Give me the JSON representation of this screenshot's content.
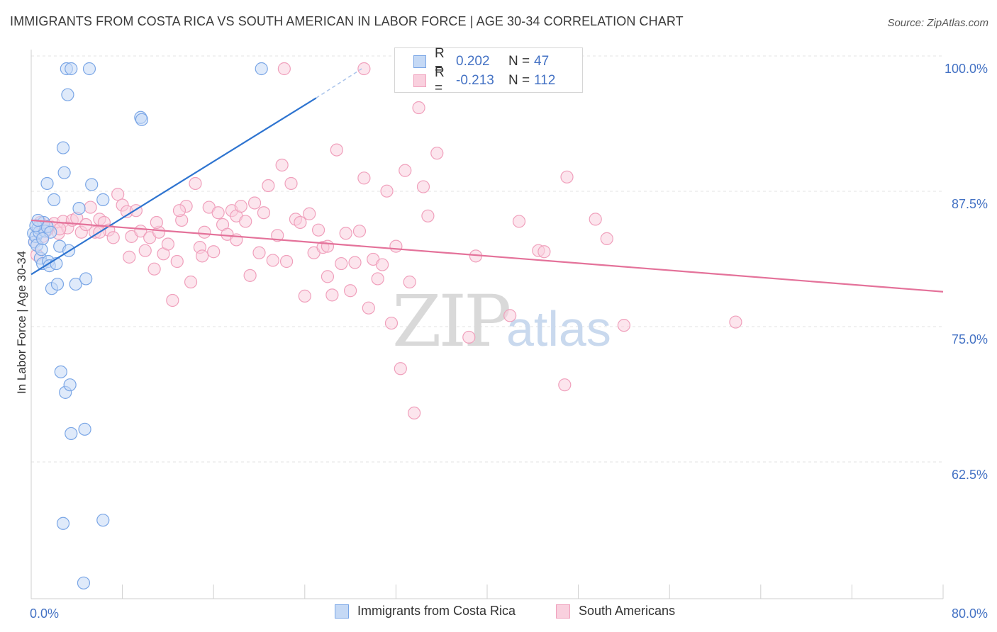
{
  "title": "IMMIGRANTS FROM COSTA RICA VS SOUTH AMERICAN IN LABOR FORCE | AGE 30-34 CORRELATION CHART",
  "source": "Source: ZipAtlas.com",
  "watermark": "ZIPatlas",
  "legend": {
    "rows": [
      {
        "r_label": "R =",
        "r_value": "0.202",
        "n_label": "N =",
        "n_value": "47"
      },
      {
        "r_label": "R =",
        "r_value": "-0.213",
        "n_label": "N =",
        "n_value": "112"
      }
    ]
  },
  "bottom_legend": {
    "series1": "Immigrants from Costa Rica",
    "series2": "South Americans"
  },
  "chart_data": {
    "type": "scatter",
    "title": "IMMIGRANTS FROM COSTA RICA VS SOUTH AMERICAN IN LABOR FORCE | AGE 30-34 CORRELATION CHART",
    "xlabel": "",
    "ylabel": "In Labor Force | Age 30-34",
    "xlim": [
      0,
      80
    ],
    "ylim": [
      51.5,
      102
    ],
    "x_tick_labels": [
      "0.0%",
      "80.0%"
    ],
    "y_ticks": [
      62.5,
      75.0,
      87.5,
      100.0
    ],
    "y_tick_labels": [
      "62.5%",
      "75.0%",
      "87.5%",
      "100.0%"
    ],
    "grid": true,
    "colors": {
      "series1": "#7aa6e6",
      "series2": "#f0a0bc",
      "line1": "#2e74d0",
      "line2": "#e4729a",
      "axis_text": "#4472c4"
    },
    "series": [
      {
        "name": "Immigrants from Costa Rica",
        "trend": {
          "x": [
            0,
            25
          ],
          "y": [
            81.0,
            97.3
          ],
          "dashed_to": {
            "x": 29,
            "y": 100.0
          }
        },
        "points": [
          [
            0.2,
            84.8
          ],
          [
            0.3,
            84.0
          ],
          [
            0.4,
            84.5
          ],
          [
            0.5,
            83.7
          ],
          [
            0.6,
            85.3
          ],
          [
            0.8,
            82.5
          ],
          [
            0.9,
            83.3
          ],
          [
            0.7,
            84.9
          ],
          [
            1.0,
            82.0
          ],
          [
            1.1,
            85.8
          ],
          [
            1.2,
            85.0
          ],
          [
            1.4,
            85.4
          ],
          [
            1.5,
            82.2
          ],
          [
            1.6,
            81.8
          ],
          [
            1.7,
            84.9
          ],
          [
            1.8,
            79.7
          ],
          [
            2.0,
            87.9
          ],
          [
            2.2,
            82.0
          ],
          [
            2.3,
            80.1
          ],
          [
            2.5,
            83.6
          ],
          [
            2.6,
            72.0
          ],
          [
            2.8,
            92.7
          ],
          [
            2.9,
            90.4
          ],
          [
            3.0,
            70.1
          ],
          [
            3.3,
            83.2
          ],
          [
            3.4,
            70.8
          ],
          [
            3.5,
            66.3
          ],
          [
            3.9,
            80.1
          ],
          [
            4.2,
            87.1
          ],
          [
            4.7,
            66.7
          ],
          [
            4.8,
            80.6
          ],
          [
            5.3,
            89.3
          ],
          [
            6.3,
            87.9
          ],
          [
            6.3,
            58.3
          ],
          [
            2.8,
            58.0
          ],
          [
            4.6,
            52.5
          ],
          [
            1.4,
            89.4
          ],
          [
            3.2,
            97.6
          ],
          [
            3.1,
            100.0
          ],
          [
            3.5,
            100.0
          ],
          [
            5.1,
            100.0
          ],
          [
            9.6,
            95.5
          ],
          [
            9.7,
            95.3
          ],
          [
            20.2,
            100.0
          ],
          [
            0.4,
            85.5
          ],
          [
            1.0,
            84.3
          ],
          [
            0.6,
            86.0
          ]
        ]
      },
      {
        "name": "South Americans",
        "trend": {
          "x": [
            0,
            80
          ],
          "y": [
            86.0,
            79.4
          ]
        },
        "points": [
          [
            0.3,
            84.0
          ],
          [
            0.5,
            82.8
          ],
          [
            0.8,
            85.8
          ],
          [
            1.0,
            84.5
          ],
          [
            1.3,
            85.0
          ],
          [
            1.6,
            85.5
          ],
          [
            2.0,
            85.7
          ],
          [
            2.4,
            84.8
          ],
          [
            2.8,
            85.9
          ],
          [
            3.2,
            85.3
          ],
          [
            3.6,
            86.0
          ],
          [
            4.0,
            86.2
          ],
          [
            4.4,
            84.9
          ],
          [
            4.8,
            85.6
          ],
          [
            5.2,
            87.2
          ],
          [
            5.6,
            84.9
          ],
          [
            6.0,
            86.1
          ],
          [
            6.4,
            85.8
          ],
          [
            6.8,
            85.1
          ],
          [
            7.2,
            84.4
          ],
          [
            7.6,
            88.4
          ],
          [
            8.0,
            87.4
          ],
          [
            8.4,
            86.8
          ],
          [
            8.8,
            84.5
          ],
          [
            9.2,
            86.9
          ],
          [
            9.6,
            85.0
          ],
          [
            10.0,
            83.2
          ],
          [
            10.4,
            84.4
          ],
          [
            10.8,
            81.5
          ],
          [
            11.2,
            84.9
          ],
          [
            11.6,
            82.9
          ],
          [
            12.0,
            83.8
          ],
          [
            12.4,
            78.6
          ],
          [
            12.8,
            82.2
          ],
          [
            13.2,
            86.0
          ],
          [
            13.6,
            87.3
          ],
          [
            14.0,
            80.3
          ],
          [
            14.4,
            89.4
          ],
          [
            14.8,
            83.5
          ],
          [
            15.2,
            84.9
          ],
          [
            15.6,
            87.2
          ],
          [
            16.0,
            83.1
          ],
          [
            16.4,
            86.7
          ],
          [
            16.8,
            85.6
          ],
          [
            17.2,
            84.7
          ],
          [
            17.6,
            86.9
          ],
          [
            18.0,
            86.4
          ],
          [
            18.4,
            87.3
          ],
          [
            18.8,
            85.9
          ],
          [
            19.2,
            80.9
          ],
          [
            19.6,
            87.6
          ],
          [
            20.0,
            83.0
          ],
          [
            20.4,
            86.7
          ],
          [
            20.8,
            89.2
          ],
          [
            21.2,
            82.3
          ],
          [
            21.6,
            84.6
          ],
          [
            22.0,
            91.1
          ],
          [
            22.4,
            82.2
          ],
          [
            22.8,
            89.4
          ],
          [
            23.2,
            86.1
          ],
          [
            23.6,
            85.8
          ],
          [
            24.0,
            79.0
          ],
          [
            24.4,
            86.6
          ],
          [
            24.8,
            83.0
          ],
          [
            25.2,
            85.1
          ],
          [
            25.6,
            83.5
          ],
          [
            26.0,
            80.8
          ],
          [
            26.4,
            79.1
          ],
          [
            26.8,
            92.5
          ],
          [
            27.2,
            82.0
          ],
          [
            27.6,
            84.8
          ],
          [
            28.0,
            79.5
          ],
          [
            28.4,
            82.1
          ],
          [
            28.8,
            85.0
          ],
          [
            29.2,
            89.9
          ],
          [
            29.6,
            77.9
          ],
          [
            30.0,
            82.4
          ],
          [
            30.4,
            80.6
          ],
          [
            30.8,
            81.9
          ],
          [
            31.2,
            88.7
          ],
          [
            31.6,
            76.5
          ],
          [
            32.0,
            83.6
          ],
          [
            32.4,
            72.3
          ],
          [
            32.8,
            90.6
          ],
          [
            33.2,
            80.3
          ],
          [
            33.6,
            68.2
          ],
          [
            34.4,
            89.1
          ],
          [
            34.8,
            86.4
          ],
          [
            35.6,
            92.2
          ],
          [
            39.0,
            82.7
          ],
          [
            38.4,
            75.2
          ],
          [
            42.0,
            77.2
          ],
          [
            42.8,
            85.9
          ],
          [
            44.5,
            83.2
          ],
          [
            45.0,
            83.1
          ],
          [
            46.8,
            70.8
          ],
          [
            47.0,
            90.0
          ],
          [
            49.5,
            86.1
          ],
          [
            50.5,
            84.3
          ],
          [
            52.0,
            76.3
          ],
          [
            61.8,
            76.6
          ],
          [
            34.0,
            96.4
          ],
          [
            22.2,
            100.0
          ],
          [
            29.2,
            100.0
          ],
          [
            2.5,
            85.2
          ],
          [
            6.0,
            84.9
          ],
          [
            8.6,
            82.6
          ],
          [
            11.0,
            85.8
          ],
          [
            13.0,
            86.9
          ],
          [
            15.0,
            82.7
          ],
          [
            18.0,
            84.2
          ],
          [
            26.0,
            83.6
          ]
        ]
      }
    ]
  }
}
